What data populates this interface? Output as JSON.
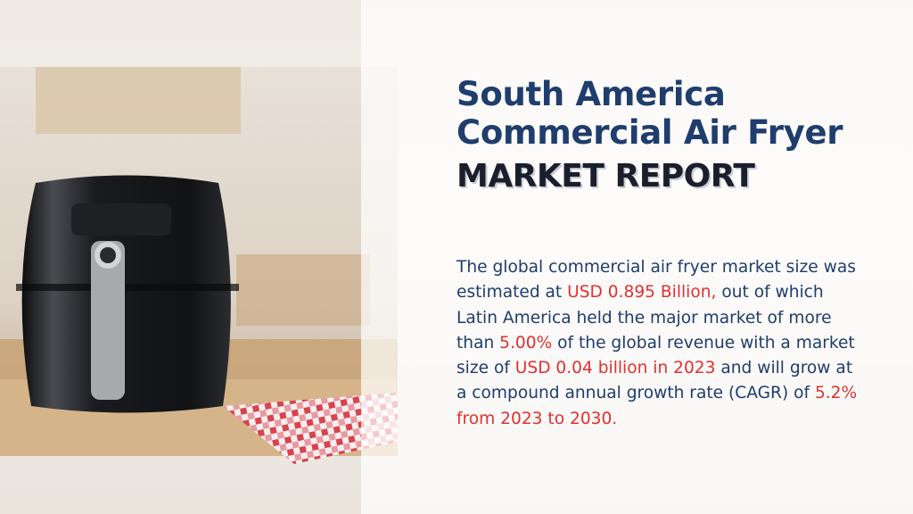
{
  "header": {
    "title": [
      "South America",
      "Commercial Air Fryer"
    ],
    "subtitle": "MARKET REPORT"
  },
  "paragraph": [
    {
      "text": "The global commercial air fryer market size was estimated at ",
      "highlight": false
    },
    {
      "text": "USD 0.895 Billion,",
      "highlight": true
    },
    {
      "text": " out of which Latin America held the major market of more than ",
      "highlight": false
    },
    {
      "text": "5.00%",
      "highlight": true
    },
    {
      "text": " of the global revenue with a market size of ",
      "highlight": false
    },
    {
      "text": "USD 0.04 billion in 2023",
      "highlight": true
    },
    {
      "text": " and will grow at a compound annual growth rate (CAGR) of ",
      "highlight": false
    },
    {
      "text": "5.2% from 2023 to 2030.",
      "highlight": true
    }
  ],
  "highlight_color": "#e0312f",
  "text_color": "#1f3d6d"
}
